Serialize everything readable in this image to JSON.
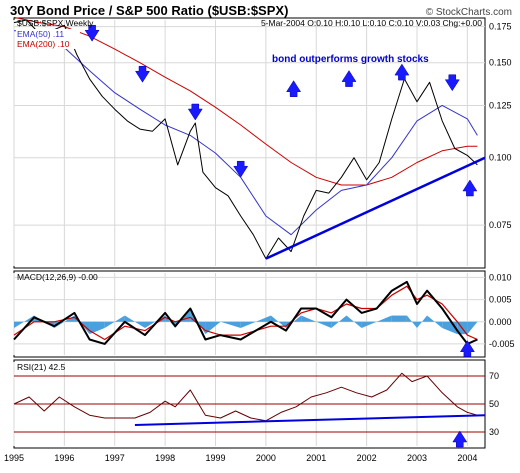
{
  "chart_data": {
    "type": "line",
    "title": "30Y Bond Price / S&P 500 Ratio ($USB:$SPX)",
    "watermark": "© StockCharts.com",
    "x_range": [
      1995.0,
      2004.35
    ],
    "x_ticks": [
      "1995",
      "1996",
      "1997",
      "1998",
      "1999",
      "2000",
      "2001",
      "2002",
      "2003",
      "2004"
    ],
    "price_panel": {
      "symbol_label": "$USB:$SPX Weekly",
      "quote_label": "5-Mar-2004 O:0.10 H:0.10 L:0.10 C:0.10 V:0.03 Chg:+0.00",
      "scale": "log",
      "y_range": [
        0.063,
        0.18
      ],
      "y_ticks": [
        "0.175",
        "0.150",
        "0.125",
        "0.100",
        "0.075"
      ],
      "annotation": "bond outperforms growth stocks",
      "series": [
        {
          "name": "EMA(50) .11",
          "color": "#3333cc",
          "x": [
            1995.0,
            1995.5,
            1996.0,
            1996.5,
            1997.0,
            1997.5,
            1998.0,
            1998.5,
            1999.0,
            1999.5,
            2000.0,
            2000.5,
            2001.0,
            2001.5,
            2002.0,
            2002.5,
            2003.0,
            2003.5,
            2004.0,
            2004.2
          ],
          "y": [
            0.172,
            0.172,
            0.16,
            0.145,
            0.132,
            0.123,
            0.115,
            0.11,
            0.102,
            0.092,
            0.078,
            0.072,
            0.08,
            0.087,
            0.089,
            0.1,
            0.117,
            0.125,
            0.118,
            0.11
          ]
        },
        {
          "name": "EMA(200) .10",
          "color": "#cc0000",
          "x": [
            1995.0,
            1995.5,
            1996.0,
            1996.5,
            1997.0,
            1997.5,
            1998.0,
            1998.5,
            1999.0,
            1999.5,
            2000.0,
            2000.5,
            2001.0,
            2001.5,
            2002.0,
            2002.5,
            2003.0,
            2003.5,
            2004.0,
            2004.2
          ],
          "y": [
            0.182,
            0.178,
            0.175,
            0.168,
            0.159,
            0.15,
            0.141,
            0.133,
            0.124,
            0.115,
            0.106,
            0.098,
            0.092,
            0.089,
            0.089,
            0.092,
            0.098,
            0.103,
            0.105,
            0.105
          ]
        },
        {
          "name": "$USB:$SPX",
          "color": "#000000",
          "x": [
            1995.0,
            1995.25,
            1995.5,
            1995.75,
            1996.0,
            1996.25,
            1996.5,
            1996.75,
            1997.0,
            1997.25,
            1997.5,
            1997.75,
            1998.0,
            1998.25,
            1998.5,
            1998.6,
            1998.75,
            1999.0,
            1999.25,
            1999.5,
            1999.75,
            2000.0,
            2000.25,
            2000.5,
            2000.75,
            2001.0,
            2001.25,
            2001.5,
            2001.75,
            2002.0,
            2002.25,
            2002.5,
            2002.75,
            2003.0,
            2003.25,
            2003.5,
            2003.75,
            2004.0,
            2004.2
          ],
          "y": [
            0.178,
            0.18,
            0.17,
            0.172,
            0.176,
            0.155,
            0.14,
            0.13,
            0.123,
            0.117,
            0.113,
            0.112,
            0.118,
            0.097,
            0.112,
            0.116,
            0.094,
            0.088,
            0.085,
            0.078,
            0.072,
            0.065,
            0.071,
            0.067,
            0.078,
            0.087,
            0.086,
            0.092,
            0.1,
            0.091,
            0.098,
            0.118,
            0.14,
            0.127,
            0.138,
            0.117,
            0.104,
            0.101,
            0.097
          ]
        }
      ],
      "trendline": {
        "x": [
          2000.0,
          2004.35
        ],
        "y": [
          0.065,
          0.1
        ],
        "color": "#0000dd"
      },
      "markers": [
        {
          "x": 1996.55,
          "y": 0.168,
          "direction": "down"
        },
        {
          "x": 1997.55,
          "y": 0.141,
          "direction": "down"
        },
        {
          "x": 1998.6,
          "y": 0.12,
          "direction": "down"
        },
        {
          "x": 1999.5,
          "y": 0.094,
          "direction": "down"
        },
        {
          "x": 2000.55,
          "y": 0.136,
          "direction": "up"
        },
        {
          "x": 2001.65,
          "y": 0.142,
          "direction": "up"
        },
        {
          "x": 2002.7,
          "y": 0.146,
          "direction": "up"
        },
        {
          "x": 2003.7,
          "y": 0.136,
          "direction": "down"
        },
        {
          "x": 2004.05,
          "y": 0.089,
          "direction": "up"
        }
      ]
    },
    "macd_panel": {
      "label": "MACD(12,26,9) -0.00",
      "y_range": [
        -0.0075,
        0.011
      ],
      "y_ticks": [
        "0.010",
        "0.005",
        "0.000",
        "-0.005"
      ],
      "series": [
        {
          "name": "MACD",
          "color": "#000000",
          "x": [
            1995.0,
            1995.4,
            1995.8,
            1996.2,
            1996.5,
            1996.8,
            1997.2,
            1997.6,
            1998.0,
            1998.2,
            1998.5,
            1998.8,
            1999.1,
            1999.5,
            1999.8,
            2000.1,
            2000.4,
            2000.7,
            2001.0,
            2001.3,
            2001.6,
            2001.9,
            2002.2,
            2002.5,
            2002.8,
            2003.0,
            2003.2,
            2003.5,
            2003.8,
            2004.0,
            2004.2
          ],
          "y": [
            -0.004,
            0.001,
            -0.001,
            0.002,
            -0.004,
            -0.005,
            0.0,
            -0.003,
            0.002,
            -0.001,
            0.003,
            -0.004,
            -0.003,
            -0.004,
            -0.002,
            0.0,
            -0.002,
            0.003,
            0.003,
            0.001,
            0.005,
            0.002,
            0.003,
            0.007,
            0.009,
            0.004,
            0.007,
            0.003,
            -0.002,
            -0.005,
            -0.004
          ]
        },
        {
          "name": "Signal",
          "color": "#cc0000",
          "x": [
            1995.0,
            1995.4,
            1995.8,
            1996.2,
            1996.5,
            1996.8,
            1997.2,
            1997.6,
            1998.0,
            1998.2,
            1998.5,
            1998.8,
            1999.1,
            1999.5,
            1999.8,
            2000.1,
            2000.4,
            2000.7,
            2001.0,
            2001.3,
            2001.6,
            2001.9,
            2002.2,
            2002.5,
            2002.8,
            2003.0,
            2003.2,
            2003.5,
            2003.8,
            2004.0,
            2004.2
          ],
          "y": [
            -0.003,
            0.0,
            0.0,
            0.001,
            -0.002,
            -0.004,
            -0.001,
            -0.002,
            0.001,
            0.0,
            0.001,
            -0.002,
            -0.003,
            -0.003,
            -0.002,
            -0.001,
            -0.001,
            0.002,
            0.003,
            0.002,
            0.004,
            0.003,
            0.003,
            0.006,
            0.008,
            0.005,
            0.006,
            0.004,
            0.0,
            -0.003,
            -0.004
          ]
        }
      ],
      "marker": {
        "x": 2004.0,
        "y": -0.0045,
        "direction": "up"
      }
    },
    "rsi_panel": {
      "label": "RSI(21) 42.5",
      "y_range": [
        20,
        80
      ],
      "y_ticks": [
        "70",
        "50",
        "30"
      ],
      "reference_lines": [
        70,
        50,
        30
      ],
      "series": [
        {
          "name": "RSI",
          "color": "#660000",
          "x": [
            1995.0,
            1995.3,
            1995.6,
            1995.9,
            1996.2,
            1996.5,
            1996.8,
            1997.1,
            1997.4,
            1997.7,
            1998.0,
            1998.2,
            1998.5,
            1998.8,
            1999.1,
            1999.4,
            1999.7,
            2000.0,
            2000.3,
            2000.6,
            2000.9,
            2001.2,
            2001.5,
            2001.8,
            2002.1,
            2002.4,
            2002.7,
            2002.9,
            2003.2,
            2003.5,
            2003.8,
            2004.0,
            2004.2
          ],
          "y": [
            50,
            55,
            45,
            55,
            48,
            42,
            40,
            40,
            40,
            44,
            52,
            48,
            60,
            42,
            40,
            45,
            40,
            38,
            44,
            48,
            55,
            58,
            62,
            58,
            55,
            60,
            72,
            66,
            70,
            58,
            48,
            44,
            42
          ]
        }
      ],
      "trendline": {
        "x": [
          1997.4,
          2004.35
        ],
        "y": [
          35,
          42
        ],
        "color": "#0000dd"
      },
      "marker": {
        "x": 2003.85,
        "y": 30,
        "direction": "up"
      }
    }
  }
}
